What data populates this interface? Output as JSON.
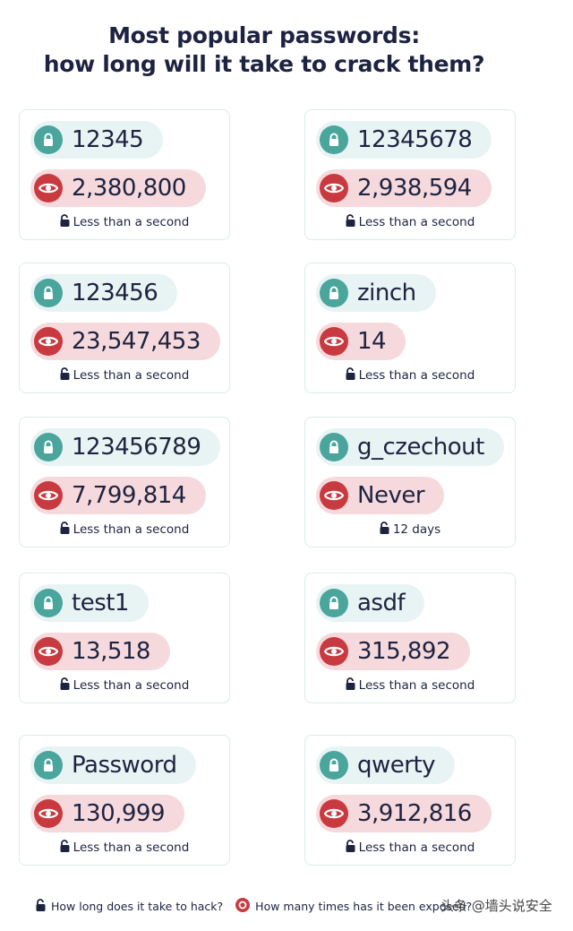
{
  "title_line1": "Most popular passwords:",
  "title_line2": "how long will it take to crack them?",
  "colors": {
    "lock_teal": "#4aa59c",
    "eye_red": "#c93a40",
    "password_pill": "#e8f3f3",
    "count_pill": "#f6d9dc",
    "text": "#1d2340"
  },
  "cards": [
    {
      "password": "12345",
      "exposed": "2,380,800",
      "crack_time": "Less than a second"
    },
    {
      "password": "12345678",
      "exposed": "2,938,594",
      "crack_time": "Less than a second"
    },
    {
      "password": "123456",
      "exposed": "23,547,453",
      "crack_time": "Less than a second"
    },
    {
      "password": "zinch",
      "exposed": "14",
      "crack_time": "Less than a second"
    },
    {
      "password": "123456789",
      "exposed": "7,799,814",
      "crack_time": "Less than a second"
    },
    {
      "password": "g_czechout",
      "exposed": "Never",
      "crack_time": "12 days"
    },
    {
      "password": "test1",
      "exposed": "13,518",
      "crack_time": "Less than a second"
    },
    {
      "password": "asdf",
      "exposed": "315,892",
      "crack_time": "Less than a second"
    },
    {
      "password": "Password",
      "exposed": "130,999",
      "crack_time": "Less than a second"
    },
    {
      "password": "qwerty",
      "exposed": "3,912,816",
      "crack_time": "Less than a second"
    }
  ],
  "legend": {
    "hack_time": "How long does it take to hack?",
    "exposed": "How many times has it been exposed?"
  },
  "watermark": "头条 @墙头说安全"
}
